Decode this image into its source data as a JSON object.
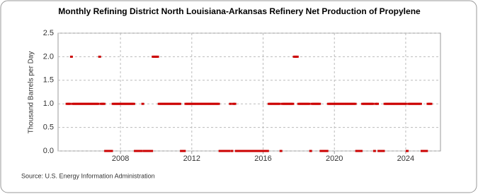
{
  "chart_data": {
    "type": "scatter",
    "title": "Monthly Refining District North Louisiana-Arkansas Refinery Net Production of Propylene",
    "y_label": "Thousand Barrels per Day",
    "source": "Source: U.S. Energy Information Administration",
    "color": "#cc0000",
    "grid": true,
    "xlim": [
      2004.5,
      2025.95
    ],
    "xticks": [
      2008,
      2012,
      2016,
      2020,
      2024
    ],
    "ylim": [
      0,
      2.5
    ],
    "yticks": [
      {
        "value": 0,
        "label": "0.0"
      },
      {
        "value": 0.5,
        "label": "0.5"
      },
      {
        "value": 1,
        "label": "1.0"
      },
      {
        "value": 1.5,
        "label": "1.5"
      },
      {
        "value": 2,
        "label": "2.0"
      },
      {
        "value": 2.5,
        "label": "2.5"
      }
    ],
    "x": [
      2005,
      2005.083,
      2005.167,
      2005.25,
      2005.333,
      2005.417,
      2005.5,
      2005.583,
      2005.667,
      2005.75,
      2005.833,
      2005.917,
      2006,
      2006.083,
      2006.167,
      2006.25,
      2006.333,
      2006.417,
      2006.5,
      2006.583,
      2006.667,
      2006.75,
      2006.833,
      2006.917,
      2007,
      2007.083,
      2007.167,
      2007.25,
      2007.333,
      2007.417,
      2007.5,
      2007.583,
      2007.667,
      2007.75,
      2007.833,
      2007.917,
      2008,
      2008.083,
      2008.167,
      2008.25,
      2008.333,
      2008.417,
      2008.5,
      2008.583,
      2008.667,
      2008.75,
      2008.833,
      2008.917,
      2009,
      2009.083,
      2009.167,
      2009.25,
      2009.333,
      2009.417,
      2009.5,
      2009.583,
      2009.667,
      2009.75,
      2009.833,
      2009.917,
      2010,
      2010.083,
      2010.167,
      2010.25,
      2010.333,
      2010.417,
      2010.5,
      2010.583,
      2010.667,
      2010.75,
      2010.833,
      2010.917,
      2011,
      2011.083,
      2011.167,
      2011.25,
      2011.333,
      2011.417,
      2011.5,
      2011.583,
      2011.667,
      2011.75,
      2011.833,
      2011.917,
      2012,
      2012.083,
      2012.167,
      2012.25,
      2012.333,
      2012.417,
      2012.5,
      2012.583,
      2012.667,
      2012.75,
      2012.833,
      2012.917,
      2013,
      2013.083,
      2013.167,
      2013.25,
      2013.333,
      2013.417,
      2013.5,
      2013.583,
      2013.667,
      2013.75,
      2013.833,
      2013.917,
      2014,
      2014.083,
      2014.167,
      2014.25,
      2014.333,
      2014.417,
      2014.5,
      2014.583,
      2014.667,
      2014.75,
      2014.833,
      2014.917,
      2015,
      2015.083,
      2015.167,
      2015.25,
      2015.333,
      2015.417,
      2015.5,
      2015.583,
      2015.667,
      2015.75,
      2015.833,
      2015.917,
      2016,
      2016.083,
      2016.167,
      2016.25,
      2016.333,
      2016.417,
      2016.5,
      2016.583,
      2016.667,
      2016.75,
      2016.833,
      2016.917,
      2017,
      2017.083,
      2017.167,
      2017.25,
      2017.333,
      2017.417,
      2017.5,
      2017.583,
      2017.667,
      2017.75,
      2017.833,
      2017.917,
      2018,
      2018.083,
      2018.167,
      2018.25,
      2018.333,
      2018.417,
      2018.5,
      2018.583,
      2018.667,
      2018.75,
      2018.833,
      2018.917,
      2019,
      2019.083,
      2019.167,
      2019.25,
      2019.333,
      2019.417,
      2019.5,
      2019.583,
      2019.667,
      2019.75,
      2019.833,
      2019.917,
      2020,
      2020.083,
      2020.167,
      2020.25,
      2020.333,
      2020.417,
      2020.5,
      2020.583,
      2020.667,
      2020.75,
      2020.833,
      2020.917,
      2021,
      2021.083,
      2021.167,
      2021.25,
      2021.333,
      2021.417,
      2021.5,
      2021.583,
      2021.667,
      2021.75,
      2021.833,
      2021.917,
      2022,
      2022.083,
      2022.167,
      2022.25,
      2022.333,
      2022.417,
      2022.5,
      2022.583,
      2022.667,
      2022.75,
      2022.833,
      2022.917,
      2023,
      2023.083,
      2023.167,
      2023.25,
      2023.333,
      2023.417,
      2023.5,
      2023.583,
      2023.667,
      2023.75,
      2023.833,
      2023.917,
      2024,
      2024.083,
      2024.167,
      2024.25,
      2024.333,
      2024.417,
      2024.5,
      2024.583,
      2024.667,
      2024.75,
      2024.833,
      2024.917,
      2025,
      2025.083,
      2025.167,
      2025.25,
      2025.333,
      2025.417
    ],
    "values": [
      1,
      1,
      1,
      2,
      1,
      1,
      1,
      1,
      1,
      1,
      1,
      1,
      1,
      1,
      1,
      1,
      1,
      1,
      1,
      1,
      1,
      1,
      2,
      1,
      1,
      1,
      0,
      0,
      0,
      0,
      0,
      1,
      1,
      1,
      1,
      1,
      1,
      1,
      1,
      1,
      1,
      1,
      1,
      1,
      1,
      1,
      0,
      0,
      0,
      0,
      0,
      1,
      0,
      0,
      0,
      0,
      0,
      0,
      2,
      2,
      2,
      2,
      1,
      1,
      1,
      1,
      1,
      1,
      1,
      1,
      1,
      1,
      1,
      1,
      1,
      1,
      1,
      0,
      0,
      0,
      1,
      1,
      1,
      1,
      1,
      1,
      1,
      1,
      1,
      1,
      1,
      1,
      1,
      1,
      1,
      1,
      1,
      1,
      1,
      1,
      1,
      1,
      1,
      0,
      0,
      0,
      0,
      0,
      0,
      0,
      1,
      0,
      1,
      1,
      0,
      0,
      0,
      0,
      0,
      0,
      0,
      0,
      0,
      0,
      0,
      0,
      0,
      0,
      0,
      0,
      0,
      0,
      0,
      0,
      0,
      0,
      1,
      1,
      1,
      1,
      1,
      1,
      1,
      1,
      0,
      1,
      1,
      1,
      1,
      1,
      1,
      1,
      1,
      2,
      2,
      2,
      1,
      1,
      1,
      1,
      1,
      1,
      1,
      1,
      0,
      1,
      1,
      1,
      1,
      1,
      1,
      0,
      0,
      0,
      0,
      0,
      1,
      1,
      1,
      1,
      1,
      1,
      1,
      1,
      1,
      1,
      1,
      1,
      1,
      1,
      1,
      1,
      1,
      1,
      1,
      0,
      0,
      0,
      0,
      1,
      1,
      1,
      1,
      1,
      1,
      1,
      1,
      0,
      1,
      1,
      0,
      0,
      0,
      0,
      1,
      1,
      1,
      1,
      1,
      1,
      1,
      1,
      1,
      1,
      1,
      1,
      1,
      1,
      1,
      0,
      1,
      1,
      1,
      1,
      1,
      1,
      1,
      1,
      1,
      0,
      0,
      0,
      0,
      1,
      1,
      1
    ]
  }
}
